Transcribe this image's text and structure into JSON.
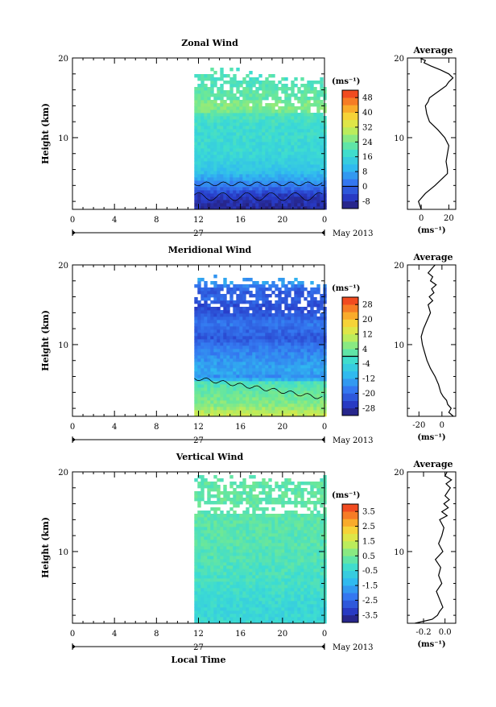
{
  "chart_data": [
    {
      "type": "heatmap",
      "title": "Zonal Wind",
      "ylabel": "Height (km)",
      "xlabel": "",
      "x_ticks": [
        "0",
        "4",
        "8",
        "12",
        "16",
        "20",
        "0"
      ],
      "x_day_label": "27",
      "x_month_label": "May 2013",
      "ylim": [
        1,
        20
      ],
      "y_ticks": [
        "20",
        "10"
      ],
      "unit_label": "(ms⁻¹)",
      "colorbar_ticks": [
        "48",
        "40",
        "32",
        "24",
        "16",
        "8",
        "0",
        "-8"
      ],
      "colorbar_range": [
        -12,
        52
      ],
      "data_start_hour": 11.6,
      "top_height": [
        18.7,
        17.0
      ],
      "field_profile": [
        [
          1,
          -10
        ],
        [
          3,
          -6
        ],
        [
          4,
          1
        ],
        [
          5,
          7
        ],
        [
          6,
          12
        ],
        [
          8,
          16
        ],
        [
          10,
          17
        ],
        [
          12,
          18
        ],
        [
          14,
          22
        ],
        [
          16,
          22
        ],
        [
          17,
          20
        ],
        [
          18,
          20
        ],
        [
          20,
          20
        ]
      ],
      "contour_label": "0",
      "average": {
        "title": "Average",
        "xlabel": "(ms⁻¹)",
        "x_ticks": [
          "0",
          "20"
        ],
        "xlim": [
          -10,
          25
        ],
        "x": [
          0,
          -2,
          3,
          10,
          16,
          19,
          19,
          18,
          19,
          20,
          17,
          12,
          6,
          4,
          3,
          5,
          6,
          10,
          14,
          18,
          20,
          23,
          20,
          14,
          7,
          2,
          3,
          0,
          1
        ],
        "y": [
          1,
          2,
          3,
          4,
          5,
          5.5,
          6,
          7,
          8,
          9,
          10,
          11,
          12,
          13,
          14,
          14.5,
          15,
          15.5,
          16,
          16.5,
          17,
          17.5,
          18,
          18.5,
          19,
          19.4,
          19.7,
          19.9,
          20
        ]
      }
    },
    {
      "type": "heatmap",
      "title": "Meridional Wind",
      "ylabel": "Height (km)",
      "xlabel": "",
      "x_ticks": [
        "0",
        "4",
        "8",
        "12",
        "16",
        "20",
        "0"
      ],
      "x_day_label": "27",
      "x_month_label": "May 2013",
      "ylim": [
        1,
        20
      ],
      "y_ticks": [
        "20",
        "10"
      ],
      "unit_label": "(ms⁻¹)",
      "colorbar_ticks": [
        "28",
        "20",
        "12",
        "4",
        "-4",
        "-12",
        "-20",
        "-28"
      ],
      "colorbar_range": [
        -32,
        32
      ],
      "data_start_hour": 11.6,
      "top_height": [
        18.5,
        17.8
      ],
      "field_profile": [
        [
          1,
          14
        ],
        [
          2.5,
          6
        ],
        [
          4,
          3
        ],
        [
          5.5,
          0
        ],
        [
          6,
          -16
        ],
        [
          7,
          -12
        ],
        [
          8,
          -14
        ],
        [
          9,
          -16
        ],
        [
          10,
          -18
        ],
        [
          11,
          -22
        ],
        [
          12,
          -20
        ],
        [
          13,
          -18
        ],
        [
          14,
          -22
        ],
        [
          15,
          -24
        ],
        [
          16,
          -20
        ],
        [
          17,
          -22
        ],
        [
          18,
          -14
        ],
        [
          20,
          -12
        ]
      ],
      "contour_label": "0",
      "average": {
        "title": "Average",
        "xlabel": "(ms⁻¹)",
        "x_ticks": [
          "-20",
          "0"
        ],
        "xlim": [
          -30,
          12
        ],
        "x": [
          10,
          6,
          8,
          5,
          4,
          1,
          -1,
          -3,
          -6,
          -10,
          -13,
          -15,
          -17,
          -18,
          -16,
          -13,
          -10,
          -12,
          -8,
          -11,
          -7,
          -9,
          -5,
          -10,
          -8,
          -12,
          -6
        ],
        "y": [
          1,
          1.5,
          2,
          2.5,
          3,
          3.5,
          4,
          5,
          6,
          7,
          8,
          9,
          10,
          11,
          12,
          13,
          14,
          15,
          15.5,
          16,
          16.5,
          17,
          17.5,
          18,
          18.5,
          19,
          20
        ]
      }
    },
    {
      "type": "heatmap",
      "title": "Vertical Wind",
      "ylabel": "Height (km)",
      "xlabel": "Local Time",
      "x_ticks": [
        "0",
        "4",
        "8",
        "12",
        "16",
        "20",
        "0"
      ],
      "x_day_label": "27",
      "x_month_label": "May 2013",
      "ylim": [
        1,
        20
      ],
      "y_ticks": [
        "20",
        "10"
      ],
      "unit_label": "(ms⁻¹)",
      "colorbar_ticks": [
        "3.5",
        "2.5",
        "1.5",
        "0.5",
        "-0.5",
        "-1.5",
        "-2.5",
        "-3.5"
      ],
      "colorbar_range": [
        -4,
        4
      ],
      "data_start_hour": 11.6,
      "top_height": [
        19.2,
        19.2
      ],
      "field_profile": [
        [
          1,
          -0.4
        ],
        [
          3,
          -0.5
        ],
        [
          6,
          -0.2
        ],
        [
          10,
          0.1
        ],
        [
          14,
          0.2
        ],
        [
          17,
          0.3
        ],
        [
          20,
          0.2
        ]
      ],
      "average": {
        "title": "Average",
        "xlabel": "(ms⁻¹)",
        "x_ticks": [
          "-0.2",
          "0.0"
        ],
        "xlim": [
          -0.35,
          0.1
        ],
        "x": [
          -0.28,
          -0.12,
          -0.07,
          -0.05,
          -0.02,
          -0.05,
          -0.08,
          -0.03,
          -0.06,
          -0.04,
          -0.09,
          -0.02,
          -0.06,
          -0.03,
          -0.01,
          -0.05,
          0.02,
          -0.03,
          0.03,
          -0.01,
          0.04,
          0.0,
          0.05,
          0.01,
          0.06,
          0.0,
          0.02
        ],
        "y": [
          1,
          1.5,
          2,
          2.5,
          3,
          4,
          5,
          6,
          7,
          8,
          9,
          10,
          11,
          12,
          13,
          14,
          14.5,
          15,
          15.5,
          16,
          16.5,
          17,
          18,
          18.5,
          19,
          19.5,
          20
        ]
      }
    }
  ]
}
